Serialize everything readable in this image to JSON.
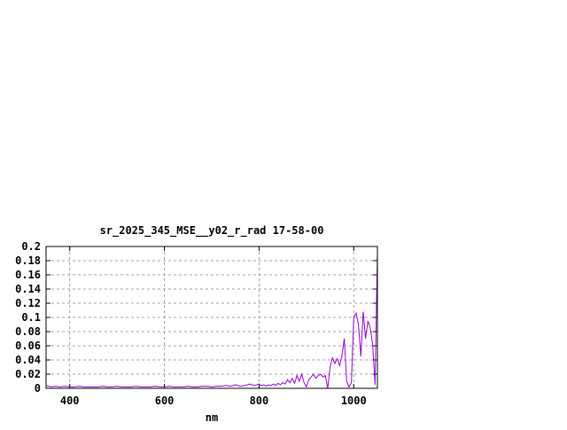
{
  "chart_data": {
    "type": "line",
    "title": "sr_2025_345_MSE__y02_r_rad 17-58-00",
    "xlabel": "nm",
    "ylabel": "",
    "xlim": [
      350,
      1050
    ],
    "ylim": [
      0,
      0.2
    ],
    "xticks": [
      400,
      600,
      800,
      1000
    ],
    "yticks": [
      0,
      0.02,
      0.04,
      0.06,
      0.08,
      0.1,
      0.12,
      0.14,
      0.16,
      0.18,
      0.2
    ],
    "ytick_labels": [
      "0",
      "0.02",
      "0.04",
      "0.06",
      "0.08",
      "0.1",
      "0.12",
      "0.14",
      "0.16",
      "0.18",
      "0.2"
    ],
    "grid": true,
    "legend": "none",
    "series_color": "#9400d3",
    "series": [
      {
        "x": [
          350,
          360,
          370,
          380,
          390,
          400,
          410,
          420,
          430,
          440,
          450,
          460,
          470,
          480,
          490,
          500,
          510,
          520,
          530,
          540,
          550,
          560,
          570,
          580,
          590,
          600,
          610,
          620,
          630,
          640,
          650,
          660,
          670,
          680,
          690,
          700,
          710,
          720,
          730,
          740,
          750,
          760,
          770,
          780,
          790,
          800,
          805,
          810,
          815,
          820,
          825,
          830,
          835,
          840,
          845,
          850,
          855,
          860,
          865,
          870,
          875,
          880,
          885,
          890,
          895,
          900,
          905,
          910,
          915,
          920,
          925,
          930,
          935,
          940,
          945,
          950,
          955,
          960,
          965,
          970,
          975,
          980,
          985,
          990,
          995,
          1000,
          1005,
          1010,
          1015,
          1020,
          1025,
          1030,
          1035,
          1040,
          1045,
          1050
        ],
        "y": [
          0.004,
          0.002,
          0.003,
          0.002,
          0.003,
          0.002,
          0.002,
          0.003,
          0.002,
          0.002,
          0.002,
          0.002,
          0.003,
          0.002,
          0.002,
          0.003,
          0.002,
          0.002,
          0.002,
          0.003,
          0.002,
          0.002,
          0.002,
          0.003,
          0.002,
          0.002,
          0.003,
          0.002,
          0.002,
          0.002,
          0.003,
          0.002,
          0.002,
          0.003,
          0.003,
          0.002,
          0.003,
          0.003,
          0.004,
          0.003,
          0.005,
          0.003,
          0.004,
          0.006,
          0.004,
          0.006,
          0.004,
          0.005,
          0.003,
          0.005,
          0.004,
          0.006,
          0.004,
          0.007,
          0.005,
          0.008,
          0.006,
          0.012,
          0.008,
          0.014,
          0.007,
          0.018,
          0.01,
          0.02,
          0.008,
          0.002,
          0.012,
          0.016,
          0.02,
          0.014,
          0.018,
          0.02,
          0.016,
          0.018,
          0.0,
          0.03,
          0.043,
          0.035,
          0.042,
          0.032,
          0.045,
          0.07,
          0.01,
          0.002,
          0.008,
          0.1,
          0.106,
          0.09,
          0.045,
          0.108,
          0.07,
          0.095,
          0.085,
          0.06,
          0.005,
          0.19
        ]
      }
    ]
  }
}
